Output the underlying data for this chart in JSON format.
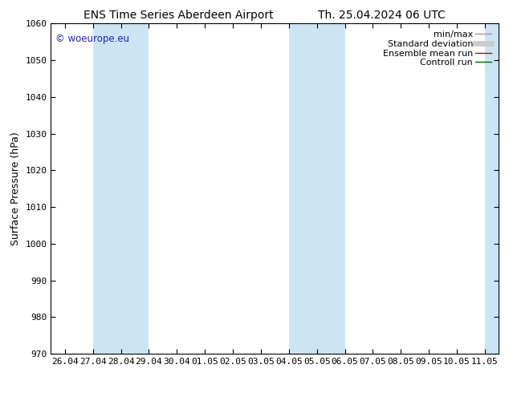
{
  "title_left": "ENS Time Series Aberdeen Airport",
  "title_right": "Th. 25.04.2024 06 UTC",
  "ylabel": "Surface Pressure (hPa)",
  "ylim": [
    970,
    1060
  ],
  "yticks": [
    970,
    980,
    990,
    1000,
    1010,
    1020,
    1030,
    1040,
    1050,
    1060
  ],
  "x_tick_labels": [
    "26.04",
    "27.04",
    "28.04",
    "29.04",
    "30.04",
    "01.05",
    "02.05",
    "03.05",
    "04.05",
    "05.05",
    "06.05",
    "07.05",
    "08.05",
    "09.05",
    "10.05",
    "11.05"
  ],
  "x_tick_positions": [
    0,
    1,
    2,
    3,
    4,
    5,
    6,
    7,
    8,
    9,
    10,
    11,
    12,
    13,
    14,
    15
  ],
  "xlim": [
    -0.5,
    15.5
  ],
  "shaded_bands": [
    {
      "x_start": 1,
      "x_end": 3,
      "color": "#cce5f5"
    },
    {
      "x_start": 8,
      "x_end": 10,
      "color": "#cce5f5"
    },
    {
      "x_start": 15,
      "x_end": 15.5,
      "color": "#cce5f5"
    }
  ],
  "watermark": "© woeurope.eu",
  "watermark_color": "#2222bb",
  "legend_items": [
    {
      "label": "min/max",
      "color": "#999999",
      "lw": 1.0,
      "linestyle": "-"
    },
    {
      "label": "Standard deviation",
      "color": "#cccccc",
      "lw": 5,
      "linestyle": "-"
    },
    {
      "label": "Ensemble mean run",
      "color": "#cc0000",
      "lw": 1.0,
      "linestyle": "-"
    },
    {
      "label": "Controll run",
      "color": "#006600",
      "lw": 1.0,
      "linestyle": "-"
    }
  ],
  "fig_width": 6.34,
  "fig_height": 4.9,
  "dpi": 100,
  "bg_color": "#ffffff",
  "plot_bg_color": "#ffffff",
  "title_fontsize": 10,
  "axis_label_fontsize": 9,
  "tick_fontsize": 8,
  "legend_fontsize": 8
}
